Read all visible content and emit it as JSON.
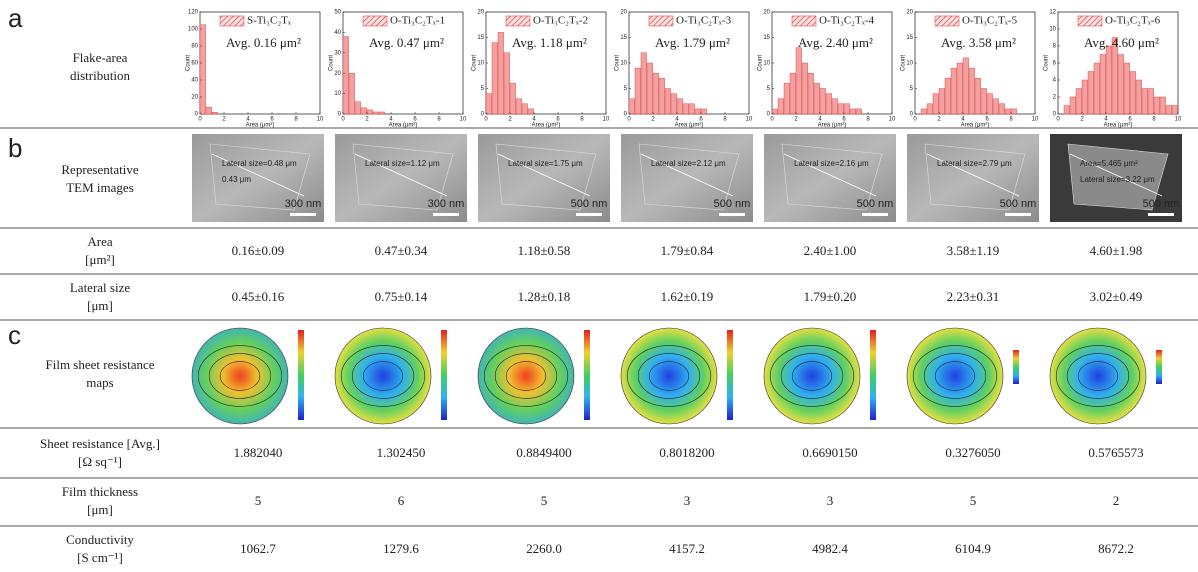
{
  "panel_letters": [
    "a",
    "b",
    "c"
  ],
  "flake_area": {
    "label": [
      "Flake-area",
      "distribution"
    ],
    "x_label": "Area (μm²)",
    "y_label": "Count",
    "bins": [
      0,
      0.5,
      1,
      1.5,
      2,
      2.5,
      3,
      3.5,
      4,
      4.5,
      5,
      5.5,
      6,
      6.5,
      7,
      7.5,
      8,
      8.5,
      9,
      9.5,
      10
    ],
    "xticks": [
      0,
      2,
      4,
      6,
      8,
      10
    ],
    "panels": [
      {
        "name": "S-Ti₃C₂Tₓ",
        "avg": "Avg. 0.16 μm²",
        "ylim": [
          0,
          120
        ],
        "yticks": [
          0,
          20,
          40,
          60,
          80,
          100,
          120
        ],
        "counts": [
          105,
          8,
          2,
          0,
          0,
          0,
          0,
          0,
          0,
          0,
          0,
          0,
          0,
          0,
          0,
          0,
          0,
          0,
          0,
          0
        ]
      },
      {
        "name": "O-Ti₃C₂Tₓ-1",
        "avg": "Avg. 0.47 μm²",
        "ylim": [
          0,
          50
        ],
        "yticks": [
          0,
          10,
          20,
          30,
          40,
          50
        ],
        "counts": [
          38,
          20,
          6,
          3,
          2,
          1,
          1,
          0,
          0,
          0,
          0,
          0,
          0,
          0,
          0,
          0,
          0,
          0,
          0,
          0
        ]
      },
      {
        "name": "O-Ti₃C₂Tₓ-2",
        "avg": "Avg. 1.18 μm²",
        "ylim": [
          0,
          20
        ],
        "yticks": [
          0,
          5,
          10,
          15,
          20
        ],
        "counts": [
          4,
          14,
          16,
          12,
          6,
          3,
          2,
          1,
          0,
          0,
          0,
          0,
          0,
          0,
          0,
          0,
          0,
          0,
          0,
          0
        ]
      },
      {
        "name": "O-Ti₃C₂Tₓ-3",
        "avg": "Avg. 1.79 μm²",
        "ylim": [
          0,
          20
        ],
        "yticks": [
          0,
          5,
          10,
          15,
          20
        ],
        "counts": [
          3,
          9,
          12,
          10,
          8,
          7,
          5,
          4,
          3,
          2,
          2,
          1,
          1,
          0,
          0,
          0,
          0,
          0,
          0,
          0
        ]
      },
      {
        "name": "O-Ti₃C₂Tₓ-4",
        "avg": "Avg.  2.40 μm²",
        "ylim": [
          0,
          20
        ],
        "yticks": [
          0,
          5,
          10,
          15,
          20
        ],
        "counts": [
          1,
          3,
          6,
          8,
          13,
          10,
          8,
          6,
          5,
          4,
          3,
          2,
          2,
          1,
          1,
          0,
          0,
          0,
          0,
          0
        ]
      },
      {
        "name": "O-Ti₃C₂Tₓ-5",
        "avg": "Avg. 3.58 μm²",
        "ylim": [
          0,
          20
        ],
        "yticks": [
          0,
          5,
          10,
          15,
          20
        ],
        "counts": [
          0,
          1,
          2,
          4,
          5,
          7,
          9,
          10,
          11,
          9,
          7,
          5,
          4,
          3,
          2,
          1,
          1,
          0,
          0,
          0
        ]
      },
      {
        "name": "O-Ti₃C₂Tₓ-6",
        "avg": "Avg. 4.60 μm²",
        "ylim": [
          0,
          12
        ],
        "yticks": [
          0,
          2,
          4,
          6,
          8,
          10,
          12
        ],
        "counts": [
          0,
          1,
          2,
          3,
          4,
          5,
          6,
          7,
          8,
          9,
          7,
          6,
          5,
          4,
          3,
          3,
          2,
          2,
          1,
          1
        ]
      }
    ]
  },
  "tem": {
    "label": [
      "Representative",
      "TEM images"
    ],
    "images": [
      {
        "annotations": [
          "Lateral size=0.48 μm",
          "0.43 μm"
        ],
        "scale_bar": "300 nm"
      },
      {
        "annotations": [
          "Lateral size=1.12 μm"
        ],
        "scale_bar": "300 nm"
      },
      {
        "annotations": [
          "Lateral size=1.75 μm"
        ],
        "scale_bar": "500 nm"
      },
      {
        "annotations": [
          "Lateral size=2.12 μm"
        ],
        "scale_bar": "500 nm"
      },
      {
        "annotations": [
          "Lateral size=2.16 μm"
        ],
        "scale_bar": "500 nm"
      },
      {
        "annotations": [
          "Lateral size=2.79 μm"
        ],
        "scale_bar": "500 nm"
      },
      {
        "annotations": [
          "Area=5.465 μm²",
          "Lateral size=3.22 μm"
        ],
        "scale_bar": "500 nm"
      }
    ]
  },
  "resistance_maps": {
    "label": [
      "Film sheet resistance",
      "maps"
    ]
  },
  "table": {
    "rows": [
      {
        "label": [
          "Area",
          "[μm²]"
        ],
        "values": [
          "0.16±0.09",
          "0.47±0.34",
          "1.18±0.58",
          "1.79±0.84",
          "2.40±1.00",
          "3.58±1.19",
          "4.60±1.98"
        ]
      },
      {
        "label": [
          "Lateral size",
          "[μm]"
        ],
        "values": [
          "0.45±0.16",
          "0.75±0.14",
          "1.28±0.18",
          "1.62±0.19",
          "1.79±0.20",
          "2.23±0.31",
          "3.02±0.49"
        ]
      },
      {
        "label": [
          "Sheet resistance [Avg.]",
          "[Ω sq⁻¹]"
        ],
        "values": [
          "1.882040",
          "1.302450",
          "0.8849400",
          "0.8018200",
          "0.6690150",
          "0.3276050",
          "0.5765573"
        ]
      },
      {
        "label": [
          "Film thickness",
          "[μm]"
        ],
        "values": [
          "5",
          "6",
          "5",
          "3",
          "3",
          "5",
          "2"
        ]
      },
      {
        "label": [
          "Conductivity",
          "[S cm⁻¹]"
        ],
        "values": [
          "1062.7",
          "1279.6",
          "2260.0",
          "4157.2",
          "4982.4",
          "6104.9",
          "8672.2"
        ]
      }
    ]
  }
}
